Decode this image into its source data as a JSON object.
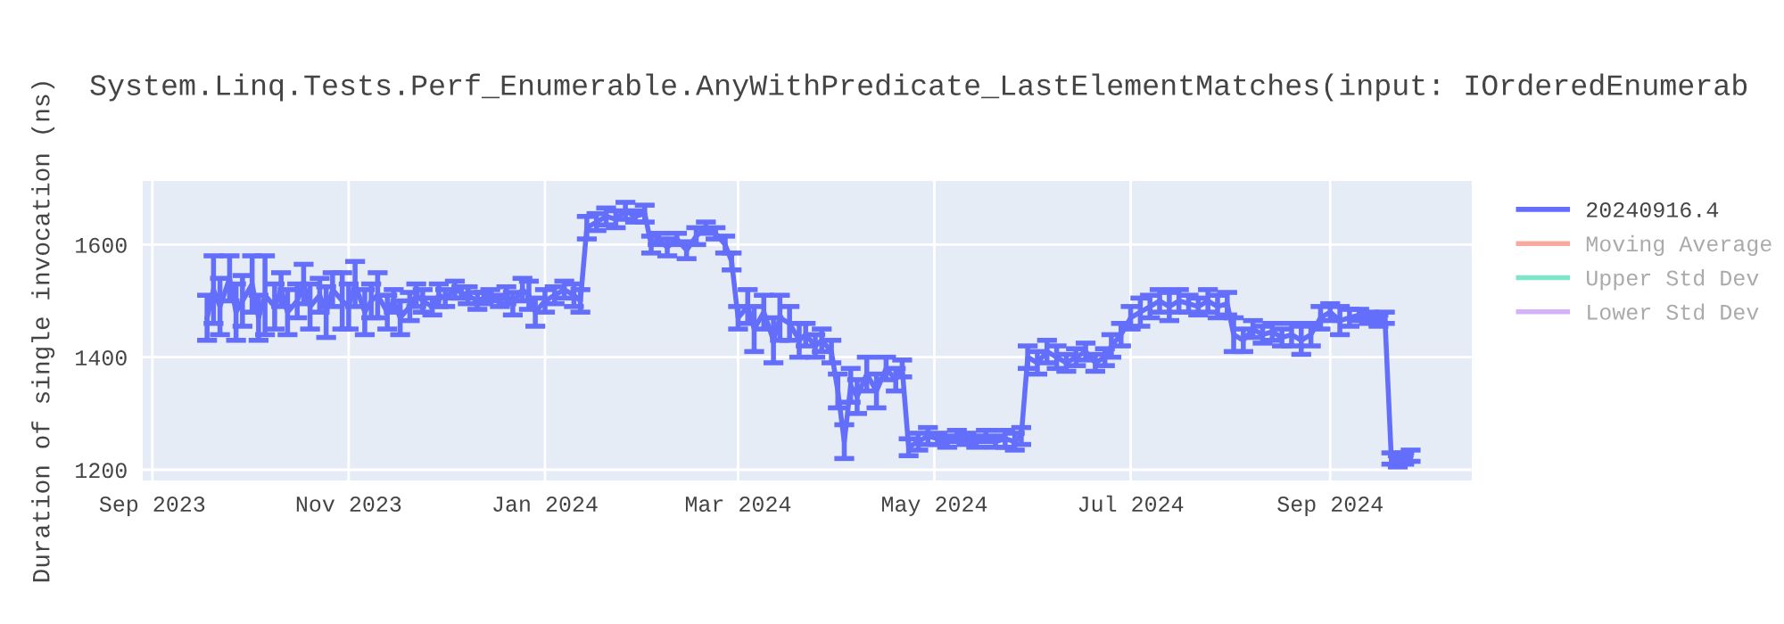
{
  "chart_data": {
    "type": "line",
    "title": "System.Linq.Tests.Perf_Enumerable.AnyWithPredicate_LastElementMatches(input: IOrderedEnumerab",
    "ylabel": "Duration of single invocation (ns)",
    "x": [
      "2023-09-18",
      "2023-09-20",
      "2023-09-22",
      "2023-09-25",
      "2023-09-27",
      "2023-09-29",
      "2023-10-02",
      "2023-10-04",
      "2023-10-06",
      "2023-10-09",
      "2023-10-11",
      "2023-10-13",
      "2023-10-16",
      "2023-10-18",
      "2023-10-20",
      "2023-10-23",
      "2023-10-25",
      "2023-10-27",
      "2023-10-30",
      "2023-11-01",
      "2023-11-03",
      "2023-11-06",
      "2023-11-08",
      "2023-11-10",
      "2023-11-13",
      "2023-11-15",
      "2023-11-17",
      "2023-11-20",
      "2023-11-22",
      "2023-11-24",
      "2023-11-27",
      "2023-11-29",
      "2023-12-01",
      "2023-12-04",
      "2023-12-06",
      "2023-12-08",
      "2023-12-11",
      "2023-12-13",
      "2023-12-15",
      "2023-12-18",
      "2023-12-20",
      "2023-12-22",
      "2023-12-25",
      "2023-12-27",
      "2023-12-29",
      "2024-01-01",
      "2024-01-04",
      "2024-01-07",
      "2024-01-10",
      "2024-01-12",
      "2024-01-14",
      "2024-01-17",
      "2024-01-20",
      "2024-01-23",
      "2024-01-26",
      "2024-01-29",
      "2024-02-01",
      "2024-02-03",
      "2024-02-05",
      "2024-02-08",
      "2024-02-11",
      "2024-02-14",
      "2024-02-17",
      "2024-02-20",
      "2024-02-23",
      "2024-02-26",
      "2024-02-28",
      "2024-03-01",
      "2024-03-04",
      "2024-03-06",
      "2024-03-09",
      "2024-03-12",
      "2024-03-14",
      "2024-03-17",
      "2024-03-20",
      "2024-03-22",
      "2024-03-25",
      "2024-03-27",
      "2024-03-30",
      "2024-04-01",
      "2024-04-03",
      "2024-04-05",
      "2024-04-07",
      "2024-04-10",
      "2024-04-13",
      "2024-04-16",
      "2024-04-19",
      "2024-04-21",
      "2024-04-23",
      "2024-04-26",
      "2024-04-29",
      "2024-05-02",
      "2024-05-05",
      "2024-05-08",
      "2024-05-11",
      "2024-05-14",
      "2024-05-17",
      "2024-05-20",
      "2024-05-23",
      "2024-05-26",
      "2024-05-28",
      "2024-05-30",
      "2024-06-02",
      "2024-06-05",
      "2024-06-08",
      "2024-06-11",
      "2024-06-14",
      "2024-06-17",
      "2024-06-20",
      "2024-06-23",
      "2024-06-25",
      "2024-06-28",
      "2024-07-01",
      "2024-07-04",
      "2024-07-07",
      "2024-07-10",
      "2024-07-13",
      "2024-07-16",
      "2024-07-19",
      "2024-07-22",
      "2024-07-25",
      "2024-07-28",
      "2024-07-31",
      "2024-08-02",
      "2024-08-05",
      "2024-08-08",
      "2024-08-11",
      "2024-08-14",
      "2024-08-17",
      "2024-08-20",
      "2024-08-23",
      "2024-08-26",
      "2024-08-29",
      "2024-09-01",
      "2024-09-04",
      "2024-09-07",
      "2024-09-10",
      "2024-09-13",
      "2024-09-16",
      "2024-09-18",
      "2024-09-20",
      "2024-09-22",
      "2024-09-24",
      "2024-09-26"
    ],
    "series": [
      {
        "name": "20240916.4",
        "color": "#636efa",
        "values": [
          1470,
          1520,
          1490,
          1540,
          1480,
          1500,
          1530,
          1470,
          1510,
          1490,
          1520,
          1480,
          1500,
          1530,
          1490,
          1510,
          1480,
          1520,
          1500,
          1490,
          1530,
          1480,
          1500,
          1510,
          1480,
          1500,
          1470,
          1490,
          1510,
          1500,
          1490,
          1510,
          1505,
          1520,
          1515,
          1510,
          1500,
          1505,
          1510,
          1500,
          1510,
          1495,
          1520,
          1510,
          1480,
          1500,
          1510,
          1520,
          1510,
          1500,
          1630,
          1640,
          1650,
          1645,
          1660,
          1650,
          1655,
          1600,
          1610,
          1595,
          1610,
          1590,
          1615,
          1630,
          1620,
          1600,
          1570,
          1470,
          1490,
          1450,
          1480,
          1430,
          1470,
          1460,
          1430,
          1440,
          1420,
          1430,
          1410,
          1340,
          1250,
          1350,
          1330,
          1370,
          1340,
          1380,
          1360,
          1380,
          1240,
          1250,
          1260,
          1255,
          1250,
          1260,
          1255,
          1250,
          1260,
          1250,
          1255,
          1250,
          1260,
          1400,
          1390,
          1410,
          1400,
          1390,
          1400,
          1410,
          1390,
          1400,
          1420,
          1440,
          1470,
          1480,
          1490,
          1500,
          1490,
          1500,
          1495,
          1490,
          1500,
          1490,
          1495,
          1440,
          1430,
          1450,
          1440,
          1445,
          1435,
          1440,
          1430,
          1440,
          1470,
          1480,
          1465,
          1470,
          1475,
          1470,
          1465,
          1470,
          1220,
          1215,
          1220,
          1225
        ],
        "errors": [
          40,
          60,
          50,
          40,
          50,
          45,
          50,
          40,
          70,
          40,
          30,
          40,
          30,
          35,
          40,
          30,
          45,
          30,
          50,
          40,
          40,
          40,
          30,
          40,
          30,
          20,
          30,
          25,
          20,
          20,
          15,
          20,
          15,
          15,
          10,
          15,
          15,
          10,
          10,
          10,
          15,
          20,
          20,
          25,
          25,
          20,
          15,
          15,
          20,
          20,
          20,
          15,
          15,
          15,
          15,
          10,
          15,
          15,
          10,
          15,
          10,
          15,
          15,
          10,
          10,
          15,
          15,
          20,
          30,
          40,
          30,
          40,
          40,
          30,
          30,
          20,
          20,
          20,
          20,
          30,
          30,
          30,
          30,
          30,
          30,
          20,
          20,
          15,
          15,
          15,
          15,
          10,
          10,
          10,
          10,
          10,
          10,
          10,
          15,
          15,
          15,
          20,
          20,
          20,
          20,
          15,
          15,
          15,
          15,
          15,
          20,
          20,
          20,
          25,
          20,
          20,
          25,
          20,
          15,
          15,
          20,
          20,
          20,
          30,
          20,
          15,
          15,
          15,
          15,
          20,
          25,
          20,
          20,
          15,
          25,
          15,
          10,
          10,
          10,
          10,
          10,
          10,
          10,
          10
        ]
      },
      {
        "name": "Moving Average",
        "color": "#ef553b",
        "values": [
          null,
          null,
          null,
          null,
          null,
          null,
          null,
          null,
          null,
          null,
          null,
          null,
          null,
          null,
          null,
          null,
          null,
          null,
          null,
          null,
          null,
          null,
          null,
          null,
          null,
          null,
          null,
          null,
          null,
          null,
          null,
          null,
          null,
          null,
          null,
          null,
          null,
          null,
          null,
          null,
          null,
          null,
          null,
          null,
          null,
          null,
          null,
          null,
          null,
          null,
          null,
          null,
          null,
          null,
          null,
          null,
          null,
          null,
          null,
          null,
          null,
          null,
          null,
          null,
          null,
          null,
          null,
          null,
          null,
          null,
          null,
          null,
          null,
          null,
          null,
          null,
          null,
          null,
          null,
          null,
          null,
          null,
          null,
          null,
          null,
          null,
          null,
          null,
          null,
          null,
          null,
          null,
          null,
          null,
          null,
          null,
          null,
          null,
          null,
          null,
          null,
          null,
          null,
          null,
          null,
          null,
          null,
          null,
          null,
          null,
          null,
          null,
          null,
          null,
          null,
          null,
          null,
          null,
          null,
          null,
          null,
          null,
          null,
          null,
          null,
          null,
          null,
          null,
          null,
          null,
          null,
          null,
          null,
          null,
          null,
          null,
          null,
          null,
          null,
          null,
          null,
          null,
          null,
          null
        ]
      },
      {
        "name": "Upper Std Dev",
        "color": "#00cc96",
        "values": [
          null,
          null,
          null,
          null,
          null,
          null,
          null,
          null,
          null,
          null,
          null,
          null,
          null,
          null,
          null,
          null,
          null,
          null,
          null,
          null,
          null,
          null,
          null,
          null,
          null,
          null,
          null,
          null,
          null,
          null,
          null,
          null,
          null,
          null,
          null,
          null,
          null,
          null,
          null,
          null,
          null,
          null,
          null,
          null,
          null,
          null,
          null,
          null,
          null,
          null,
          null,
          null,
          null,
          null,
          null,
          null,
          null,
          null,
          null,
          null,
          null,
          null,
          null,
          null,
          null,
          null,
          null,
          null,
          null,
          null,
          null,
          null,
          null,
          null,
          null,
          null,
          null,
          null,
          null,
          null,
          null,
          null,
          null,
          null,
          null,
          null,
          null,
          null,
          null,
          null,
          null,
          null,
          null,
          null,
          null,
          null,
          null,
          null,
          null,
          null,
          null,
          null,
          null,
          null,
          null,
          null,
          null,
          null,
          null,
          null,
          null,
          null,
          null,
          null,
          null,
          null,
          null,
          null,
          null,
          null,
          null,
          null,
          null,
          null,
          null,
          null,
          null,
          null,
          null,
          null,
          null,
          null,
          null,
          null,
          null,
          null,
          null,
          null,
          null,
          null,
          null,
          null,
          null,
          null
        ]
      },
      {
        "name": "Lower Std Dev",
        "color": "#ab63fa",
        "values": [
          null,
          null,
          null,
          null,
          null,
          null,
          null,
          null,
          null,
          null,
          null,
          null,
          null,
          null,
          null,
          null,
          null,
          null,
          null,
          null,
          null,
          null,
          null,
          null,
          null,
          null,
          null,
          null,
          null,
          null,
          null,
          null,
          null,
          null,
          null,
          null,
          null,
          null,
          null,
          null,
          null,
          null,
          null,
          null,
          null,
          null,
          null,
          null,
          null,
          null,
          null,
          null,
          null,
          null,
          null,
          null,
          null,
          null,
          null,
          null,
          null,
          null,
          null,
          null,
          null,
          null,
          null,
          null,
          null,
          null,
          null,
          null,
          null,
          null,
          null,
          null,
          null,
          null,
          null,
          null,
          null,
          null,
          null,
          null,
          null,
          null,
          null,
          null,
          null,
          null,
          null,
          null,
          null,
          null,
          null,
          null,
          null,
          null,
          null,
          null,
          null,
          null,
          null,
          null,
          null,
          null,
          null,
          null,
          null,
          null,
          null,
          null,
          null,
          null,
          null,
          null,
          null,
          null,
          null,
          null,
          null,
          null,
          null,
          null,
          null,
          null,
          null,
          null,
          null,
          null,
          null,
          null,
          null,
          null,
          null,
          null,
          null,
          null,
          null,
          null,
          null,
          null,
          null,
          null
        ]
      }
    ],
    "xlim": [
      "2023-08-29",
      "2024-10-15"
    ],
    "xticks": [
      {
        "value": "2023-09-01",
        "label": "Sep 2023"
      },
      {
        "value": "2023-11-01",
        "label": "Nov 2023"
      },
      {
        "value": "2024-01-01",
        "label": "Jan 2024"
      },
      {
        "value": "2024-03-01",
        "label": "Mar 2024"
      },
      {
        "value": "2024-05-01",
        "label": "May 2024"
      },
      {
        "value": "2024-07-01",
        "label": "Jul 2024"
      },
      {
        "value": "2024-09-01",
        "label": "Sep 2024"
      }
    ],
    "ylim": [
      1181,
      1713
    ],
    "yticks": [
      1200,
      1400,
      1600
    ],
    "grid": true,
    "legend": "top right",
    "marker": "none",
    "line_style": "solid"
  }
}
